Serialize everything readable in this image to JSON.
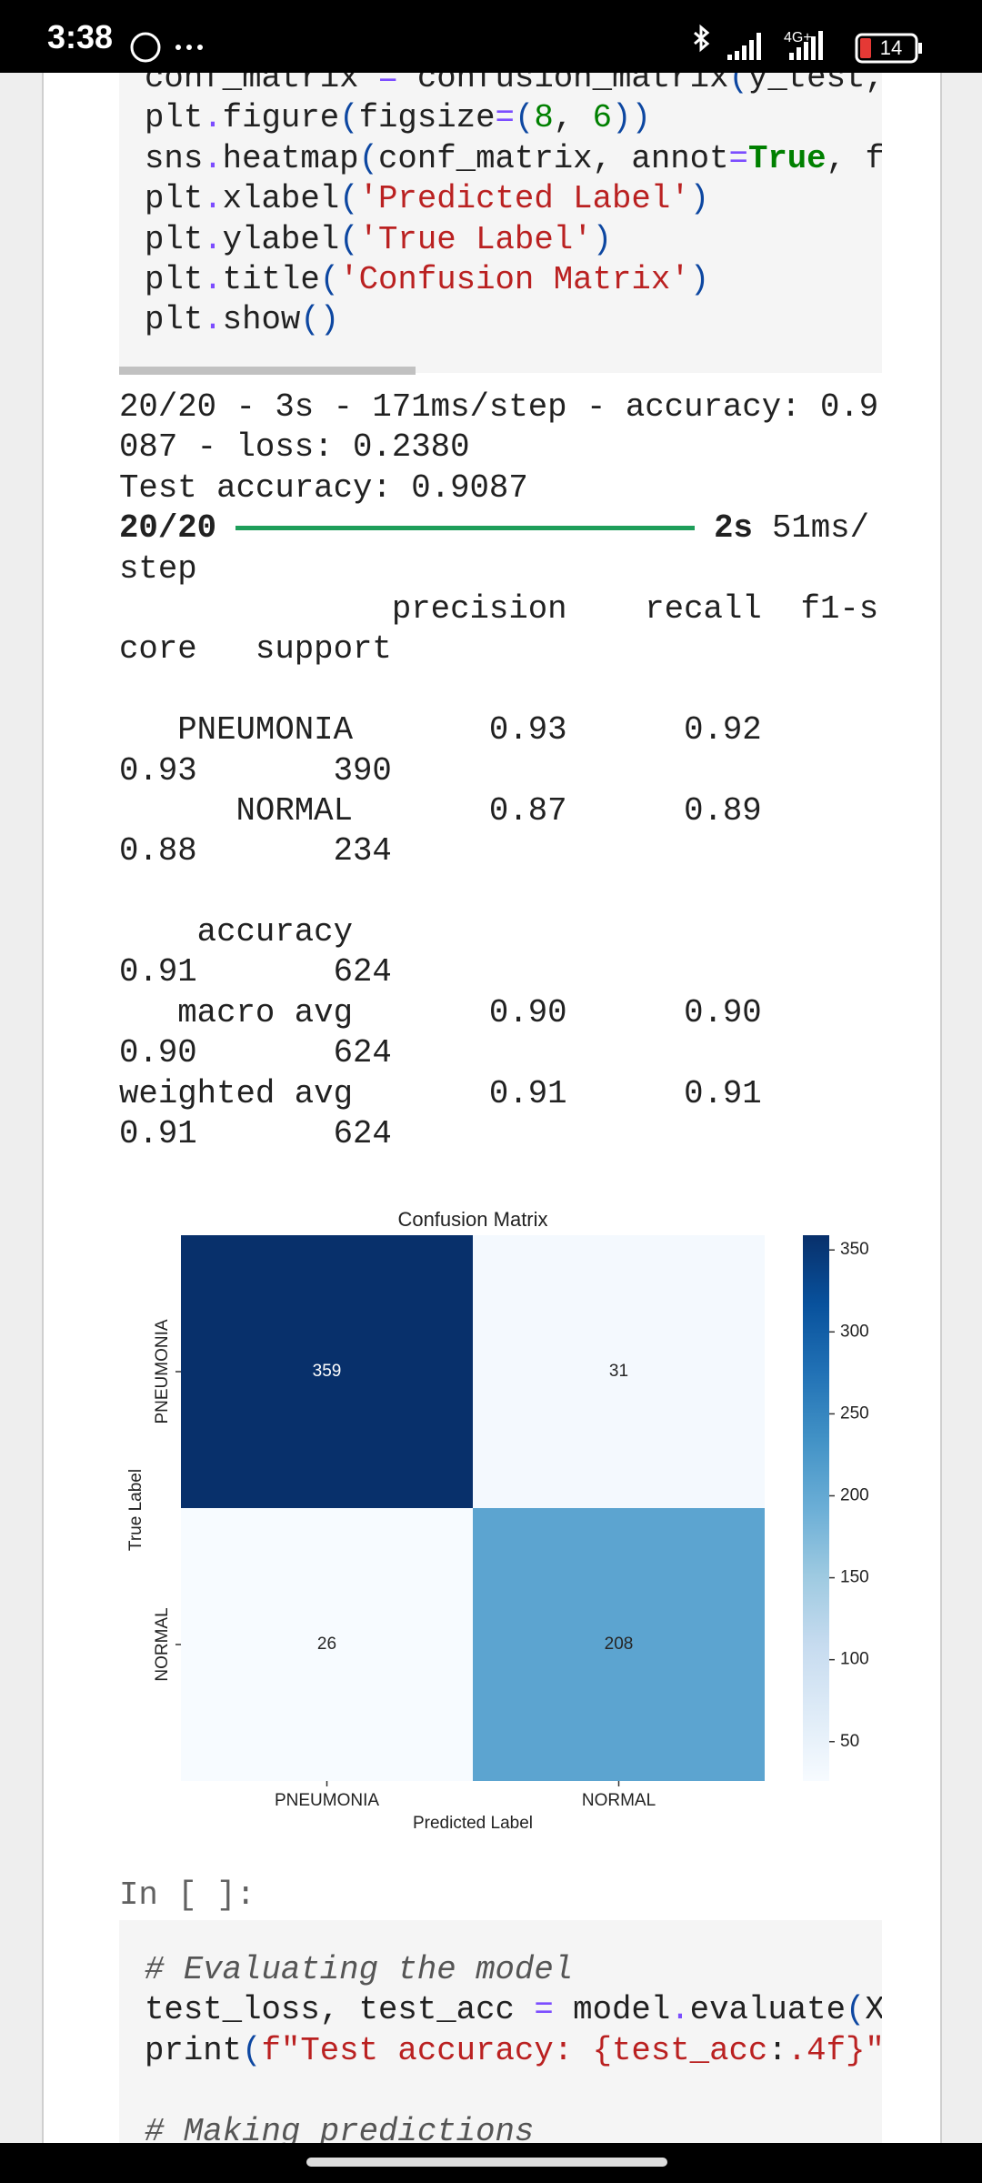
{
  "status_bar": {
    "time": "3:38",
    "network": "4G+",
    "battery": "14"
  },
  "code_cell_1": {
    "lines": [
      [
        [
          "conf_matrix ",
          "#212121"
        ],
        [
          "=",
          "#7c4dff"
        ],
        [
          " confusion_matrix",
          "#212121"
        ],
        [
          "(",
          "#0d47a1"
        ],
        [
          "y_test,",
          "#212121"
        ]
      ],
      [
        [
          "plt",
          "#212121"
        ],
        [
          ".",
          "#7c4dff"
        ],
        [
          "figure",
          "#212121"
        ],
        [
          "(",
          "#0d47a1"
        ],
        [
          "figsize",
          "#212121"
        ],
        [
          "=",
          "#7c4dff"
        ],
        [
          "(",
          "#0d47a1"
        ],
        [
          "8",
          "#008000"
        ],
        [
          ", ",
          "#212121"
        ],
        [
          "6",
          "#008000"
        ],
        [
          "))",
          "#0d47a1"
        ]
      ],
      [
        [
          "sns",
          "#212121"
        ],
        [
          ".",
          "#7c4dff"
        ],
        [
          "heatmap",
          "#212121"
        ],
        [
          "(",
          "#0d47a1"
        ],
        [
          "conf_matrix, annot",
          "#212121"
        ],
        [
          "=",
          "#7c4dff"
        ],
        [
          "True",
          "#008000",
          "bold"
        ],
        [
          ", f",
          "#212121"
        ]
      ],
      [
        [
          "plt",
          "#212121"
        ],
        [
          ".",
          "#7c4dff"
        ],
        [
          "xlabel",
          "#212121"
        ],
        [
          "(",
          "#0d47a1"
        ],
        [
          "'Predicted Label'",
          "#ba2121"
        ],
        [
          ")",
          "#0d47a1"
        ]
      ],
      [
        [
          "plt",
          "#212121"
        ],
        [
          ".",
          "#7c4dff"
        ],
        [
          "ylabel",
          "#212121"
        ],
        [
          "(",
          "#0d47a1"
        ],
        [
          "'True Label'",
          "#ba2121"
        ],
        [
          ")",
          "#0d47a1"
        ]
      ],
      [
        [
          "plt",
          "#212121"
        ],
        [
          ".",
          "#7c4dff"
        ],
        [
          "title",
          "#212121"
        ],
        [
          "(",
          "#0d47a1"
        ],
        [
          "'Confusion Matrix'",
          "#ba2121"
        ],
        [
          ")",
          "#0d47a1"
        ]
      ],
      [
        [
          "plt",
          "#212121"
        ],
        [
          ".",
          "#7c4dff"
        ],
        [
          "show",
          "#212121"
        ],
        [
          "()",
          "#0d47a1"
        ]
      ]
    ]
  },
  "output": {
    "lines_before": [
      "20/20 - 3s - 171ms/step - accuracy: 0.9",
      "087 - loss: 0.2380",
      "Test accuracy: 0.9087"
    ],
    "progress": {
      "count": "20/20",
      "time": "2s",
      "rate": "51ms/",
      "bar_color": "#1e9e5a"
    },
    "lines_after": [
      "step",
      "              precision    recall  f1-s",
      "core   support",
      null,
      "   PNEUMONIA       0.93      0.92",
      "0.93       390",
      "      NORMAL       0.87      0.89",
      "0.88       234",
      null,
      "    accuracy",
      "0.91       624",
      "   macro avg       0.90      0.90",
      "0.90       624",
      "weighted avg       0.91      0.91",
      "0.91       624"
    ]
  },
  "chart_data": {
    "type": "heatmap",
    "title": "Confusion Matrix",
    "x_label": "Predicted Label",
    "y_label": "True Label",
    "x_categories": [
      "PNEUMONIA",
      "NORMAL"
    ],
    "y_categories": [
      "PNEUMONIA",
      "NORMAL"
    ],
    "values": [
      [
        359,
        31
      ],
      [
        26,
        208
      ]
    ],
    "colormap": "Blues",
    "clim": [
      26,
      359
    ],
    "cticks": [
      50,
      100,
      150,
      200,
      250,
      300,
      350
    ]
  },
  "prompt": "In [ ]:",
  "code_cell_2": {
    "lines": [
      [
        [
          "# Evaluating the model",
          "#555555",
          "italic"
        ]
      ],
      [
        [
          "test_loss, test_acc ",
          "#212121"
        ],
        [
          "=",
          "#7c4dff"
        ],
        [
          " model",
          "#212121"
        ],
        [
          ".",
          "#7c4dff"
        ],
        [
          "evaluate",
          "#212121"
        ],
        [
          "(",
          "#0d47a1"
        ],
        [
          "X",
          "#212121"
        ]
      ],
      [
        [
          "print",
          "#212121"
        ],
        [
          "(",
          "#0d47a1"
        ],
        [
          "f\"Test accuracy: {test_acc",
          "#ba2121"
        ],
        [
          ":",
          "#212121"
        ],
        [
          ".4f}\"",
          "#ba2121"
        ]
      ],
      [],
      [
        [
          "# Making predictions",
          "#555555",
          "italic"
        ]
      ]
    ]
  }
}
